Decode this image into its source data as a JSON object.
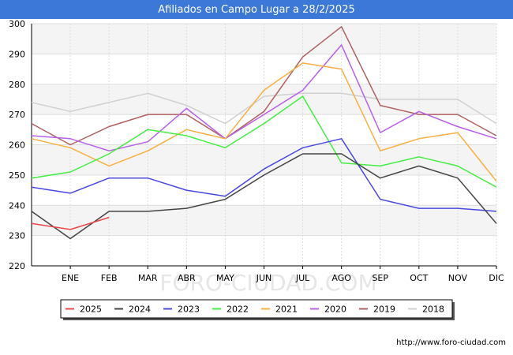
{
  "header": {
    "title": "Afiliados en Campo Lugar a 28/2/2025"
  },
  "footer": {
    "url": "http://www.foro-ciudad.com"
  },
  "watermark": "FORO-CIUDAD.COM",
  "chart_data": {
    "type": "line",
    "categories": [
      "",
      "ENE",
      "FEB",
      "MAR",
      "ABR",
      "MAY",
      "JUN",
      "JUL",
      "AGO",
      "SEP",
      "OCT",
      "NOV",
      "DIC"
    ],
    "ylim": [
      220,
      300
    ],
    "yticks": [
      220,
      230,
      240,
      250,
      260,
      270,
      280,
      290,
      300
    ],
    "grid": true,
    "legend_position": "bottom",
    "series": [
      {
        "name": "2025",
        "color": "#e8484a",
        "values": [
          234,
          232,
          236,
          null,
          null,
          null,
          null,
          null,
          null,
          null,
          null,
          null,
          null
        ]
      },
      {
        "name": "2024",
        "color": "#444444",
        "values": [
          238,
          229,
          238,
          238,
          239,
          242,
          250,
          257,
          257,
          249,
          253,
          249,
          234
        ]
      },
      {
        "name": "2023",
        "color": "#4848e0",
        "values": [
          246,
          244,
          249,
          249,
          245,
          243,
          252,
          259,
          262,
          242,
          239,
          239,
          238
        ]
      },
      {
        "name": "2022",
        "color": "#44ee44",
        "values": [
          249,
          251,
          257,
          265,
          263,
          259,
          267,
          276,
          254,
          253,
          256,
          253,
          246
        ]
      },
      {
        "name": "2021",
        "color": "#f8b040",
        "values": [
          262,
          259,
          253,
          258,
          265,
          262,
          278,
          287,
          285,
          258,
          262,
          264,
          248
        ]
      },
      {
        "name": "2020",
        "color": "#b860e8",
        "values": [
          263,
          262,
          258,
          261,
          272,
          262,
          270,
          278,
          293,
          264,
          271,
          266,
          262
        ]
      },
      {
        "name": "2019",
        "color": "#b06060",
        "values": [
          267,
          260,
          266,
          270,
          270,
          262,
          271,
          289,
          299,
          273,
          270,
          270,
          263
        ]
      },
      {
        "name": "2018",
        "color": "#d0d0d0",
        "values": [
          274,
          271,
          274,
          277,
          273,
          267,
          276,
          277,
          277,
          275,
          275,
          275,
          267
        ]
      }
    ]
  }
}
